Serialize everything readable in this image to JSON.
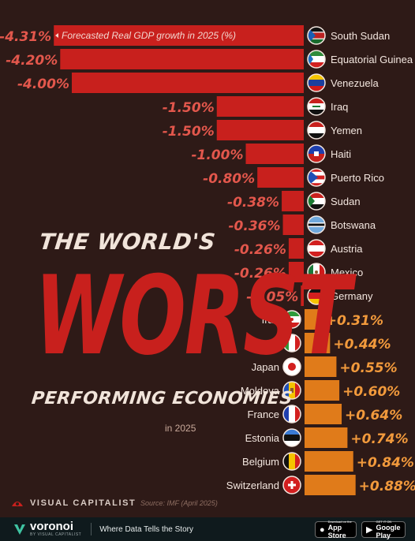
{
  "chart_data": {
    "type": "bar",
    "title": "THE WORLD'S WORST PERFORMING ECONOMIES",
    "subtitle": "in 2025",
    "legend_note": "Forecasted Real GDP growth in 2025 (%)",
    "categories": [
      "South Sudan",
      "Equatorial Guinea",
      "Venezuela",
      "Iraq",
      "Yemen",
      "Haiti",
      "Puerto Rico",
      "Sudan",
      "Botswana",
      "Austria",
      "Mexico",
      "Germany",
      "Iran",
      "Italy",
      "Japan",
      "Moldova",
      "France",
      "Estonia",
      "Belgium",
      "Switzerland"
    ],
    "values": [
      -4.31,
      -4.2,
      -4.0,
      -1.5,
      -1.5,
      -1.0,
      -0.8,
      -0.38,
      -0.36,
      -0.26,
      -0.26,
      -0.05,
      0.31,
      0.44,
      0.55,
      0.6,
      0.64,
      0.74,
      0.84,
      0.88
    ],
    "labels": [
      "-4.31%",
      "-4.20%",
      "-4.00%",
      "-1.50%",
      "-1.50%",
      "-1.00%",
      "-0.80%",
      "-0.38%",
      "-0.36%",
      "-0.26%",
      "-0.26%",
      "-0.05%",
      "+0.31%",
      "+0.44%",
      "+0.55%",
      "+0.60%",
      "+0.64%",
      "+0.74%",
      "+0.84%",
      "+0.88%"
    ],
    "flags": [
      "flag-south-sudan",
      "flag-equatorial-guinea",
      "flag-venezuela",
      "flag-iraq",
      "flag-yemen",
      "flag-haiti",
      "flag-puerto-rico",
      "flag-sudan",
      "flag-botswana",
      "flag-austria",
      "flag-mexico",
      "flag-germany",
      "flag-iran",
      "flag-italy",
      "flag-japan",
      "flag-moldova",
      "flag-france",
      "flag-estonia",
      "flag-belgium",
      "flag-switzerland"
    ],
    "colors": {
      "negative": "#c8201d",
      "positive": "#e07b1a",
      "negative_label": "#e3574c",
      "positive_label": "#f29a3c"
    }
  },
  "headline": {
    "line1": "THE WORLD'S",
    "line2": "WORST",
    "line3": "PERFORMING ECONOMIES",
    "line4": "in 2025"
  },
  "brand": {
    "name": "VISUAL CAPITALIST",
    "source": "Source: IMF (April 2025)"
  },
  "footer": {
    "logo_text": "voronoi",
    "logo_sub": "BY VISUAL CAPITALIST",
    "tagline": "Where Data Tells the Story",
    "appstore_small": "Download on the",
    "appstore_big": "App Store",
    "googleplay_small": "GET IT ON",
    "googleplay_big": "Google Play"
  },
  "icons": {
    "apple": "apple-icon",
    "play": "google-play-icon"
  }
}
